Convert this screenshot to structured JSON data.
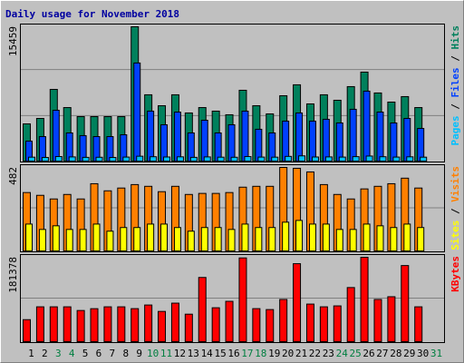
{
  "chart_data": [
    {
      "type": "bar",
      "title": "Daily usage for November 2018",
      "legend_separator": " / ",
      "ylim": [
        0,
        15459
      ],
      "yticks": [
        15459
      ],
      "series": [
        {
          "name": "Hits",
          "color": "#00805c",
          "values": [
            4280,
            4910,
            8250,
            6160,
            5120,
            5120,
            5120,
            5120,
            15459,
            7630,
            6370,
            7630,
            5540,
            6160,
            5750,
            5330,
            8150,
            6370,
            5430,
            7520,
            8780,
            6580,
            7630,
            7000,
            8570,
            10240,
            7840,
            6790,
            7420,
            6160,
            null
          ]
        },
        {
          "name": "Files",
          "color": "#0040ff",
          "values": [
            2300,
            2820,
            5850,
            3240,
            2930,
            2820,
            2820,
            3030,
            11290,
            5750,
            4180,
            5640,
            3240,
            4700,
            3240,
            4180,
            5750,
            3660,
            3240,
            4600,
            5540,
            4600,
            4810,
            4390,
            5960,
            8050,
            5640,
            4390,
            4910,
            3760,
            null
          ]
        },
        {
          "name": "Pages",
          "color": "#00c0ff",
          "values": [
            450,
            420,
            520,
            480,
            430,
            440,
            420,
            460,
            560,
            500,
            470,
            490,
            430,
            480,
            450,
            440,
            520,
            460,
            450,
            540,
            600,
            470,
            480,
            460,
            510,
            580,
            500,
            460,
            490,
            450,
            null
          ]
        }
      ]
    },
    {
      "type": "bar",
      "ylim": [
        0,
        482
      ],
      "yticks": [
        482
      ],
      "legend_separator": " / ",
      "series": [
        {
          "name": "Visits",
          "color": "#ff8000",
          "values": [
            337,
            321,
            300,
            326,
            300,
            388,
            347,
            363,
            383,
            373,
            342,
            373,
            326,
            332,
            332,
            337,
            368,
            373,
            373,
            482,
            477,
            456,
            383,
            326,
            300,
            358,
            373,
            388,
            420,
            363,
            null
          ]
        },
        {
          "name": "Sites",
          "color": "#ffff00",
          "values": [
            155,
            124,
            145,
            124,
            124,
            155,
            114,
            135,
            135,
            155,
            155,
            135,
            114,
            135,
            135,
            124,
            155,
            135,
            135,
            166,
            176,
            155,
            155,
            124,
            124,
            155,
            145,
            135,
            155,
            135,
            null
          ]
        }
      ]
    },
    {
      "type": "bar",
      "ylim": [
        0,
        181378
      ],
      "yticks": [
        181378
      ],
      "legend_separator": " / ",
      "categories": [
        "1",
        "2",
        "3",
        "4",
        "5",
        "6",
        "7",
        "8",
        "9",
        "10",
        "11",
        "12",
        "13",
        "14",
        "15",
        "16",
        "17",
        "18",
        "19",
        "20",
        "21",
        "22",
        "23",
        "24",
        "25",
        "26",
        "27",
        "28",
        "29",
        "30",
        "31"
      ],
      "category_colors": [
        "#000000",
        "#000000",
        "#007f40",
        "#007f40",
        "#000000",
        "#000000",
        "#000000",
        "#000000",
        "#000000",
        "#007f40",
        "#007f40",
        "#000000",
        "#000000",
        "#000000",
        "#000000",
        "#000000",
        "#007f40",
        "#007f40",
        "#000000",
        "#000000",
        "#000000",
        "#000000",
        "#000000",
        "#007f40",
        "#007f40",
        "#000000",
        "#000000",
        "#000000",
        "#000000",
        "#000000",
        "#007f40"
      ],
      "series": [
        {
          "name": "KBytes",
          "color": "#ff0000",
          "values": [
            47300,
            74900,
            74900,
            74900,
            67000,
            70900,
            74900,
            74900,
            71000,
            78800,
            65000,
            82800,
            59100,
            138000,
            72900,
            86700,
            180000,
            71000,
            69000,
            90700,
            167600,
            80800,
            74900,
            76900,
            116300,
            181378,
            90700,
            96600,
            163600,
            74900,
            null
          ]
        }
      ]
    }
  ]
}
